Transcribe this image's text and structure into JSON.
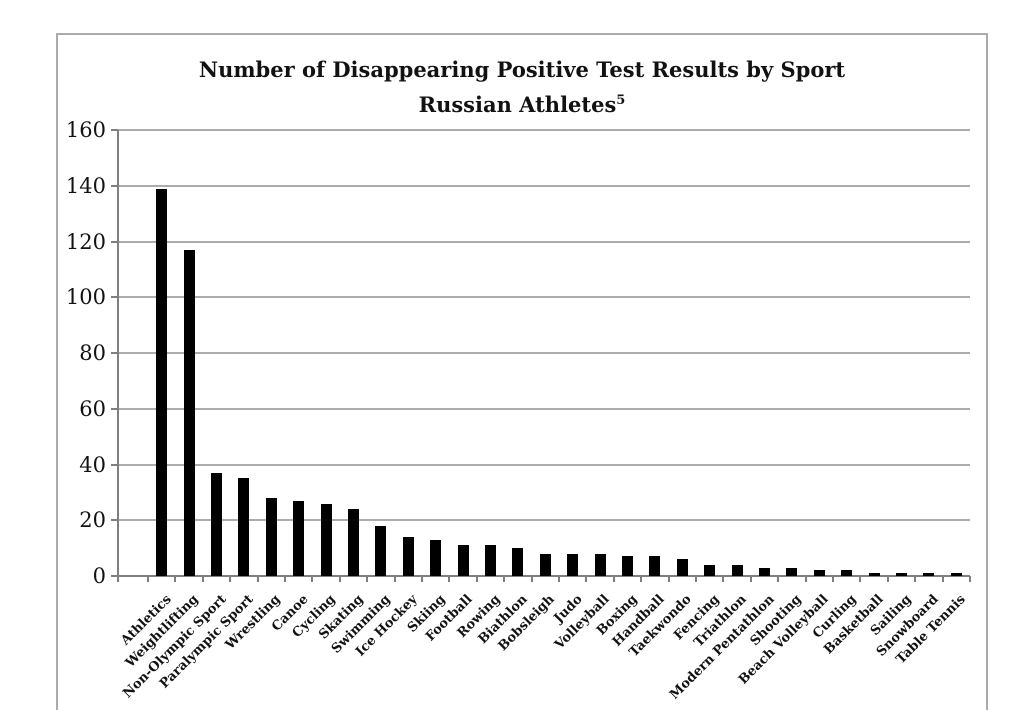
{
  "figure": {
    "title_line1": "Number of Disappearing Positive Test Results by Sport",
    "title_line2": "Russian Athletes",
    "title_superscript": "5"
  },
  "chart_data": {
    "type": "bar",
    "title": "Number of Disappearing Positive Test Results by Sport Russian Athletes⁵",
    "xlabel": "",
    "ylabel": "",
    "categories": [
      "Athletics",
      "Weightlifting",
      "Non-Olympic Sport",
      "Paralympic Sport",
      "Wrestling",
      "Canoe",
      "Cycling",
      "Skating",
      "Swimming",
      "Ice Hockey",
      "Skiing",
      "Football",
      "Rowing",
      "Biathlon",
      "Bobsleigh",
      "Judo",
      "Volleyball",
      "Boxing",
      "Handball",
      "Taekwondo",
      "Fencing",
      "Triathlon",
      "Modern Pentathlon",
      "Shooting",
      "Beach Volleyball",
      "Curling",
      "Basketball",
      "Sailing",
      "Snowboard",
      "Table Tennis"
    ],
    "values": [
      139,
      117,
      37,
      35,
      28,
      27,
      26,
      24,
      18,
      14,
      13,
      11,
      11,
      10,
      8,
      8,
      8,
      7,
      7,
      6,
      4,
      4,
      3,
      3,
      2,
      2,
      1,
      1,
      1,
      1
    ],
    "ylim": [
      0,
      160
    ],
    "yticks": [
      0,
      20,
      40,
      60,
      80,
      100,
      120,
      140,
      160
    ],
    "grid": "horizontal",
    "legend": "none",
    "bar_color": "#000000",
    "gridline_color": "#9d9d9d",
    "axis_color": "#7f7f7f",
    "frame_border_color": "#ababab",
    "text_color": "#121212",
    "background_color": "#ffffff"
  }
}
